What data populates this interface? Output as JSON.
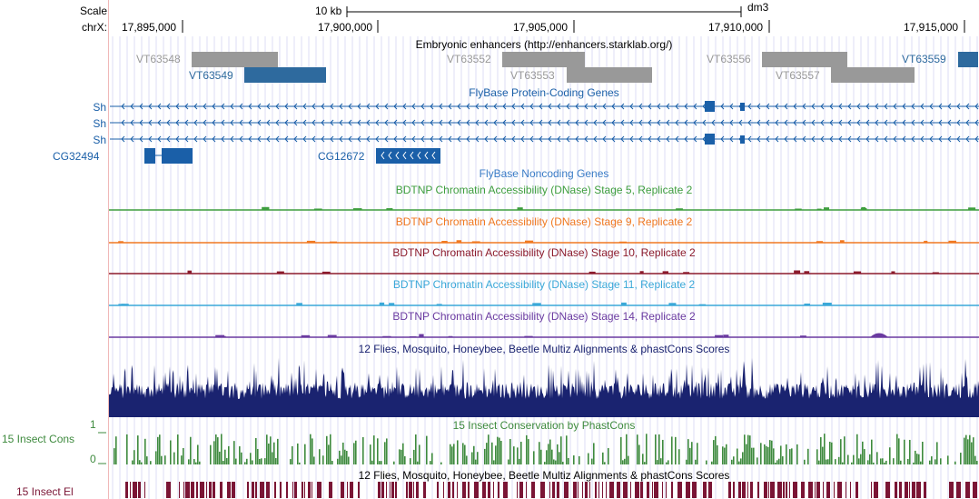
{
  "ruler": {
    "scale_label": "Scale",
    "chrom_label": "chrX:",
    "scale_bar_text": "10 kb",
    "assembly": "dm3",
    "ticks": [
      "17,895,000",
      "17,900,000",
      "17,905,000",
      "17,910,000",
      "17,915,000"
    ]
  },
  "enhancers": {
    "title": "Embryonic enhancers (http://enhancers.starklab.org/)",
    "items": [
      {
        "name": "VT63548",
        "color": "#999999"
      },
      {
        "name": "VT63549",
        "color": "#2e6a9e"
      },
      {
        "name": "VT63552",
        "color": "#999999"
      },
      {
        "name": "VT63553",
        "color": "#999999"
      },
      {
        "name": "VT63556",
        "color": "#999999"
      },
      {
        "name": "VT63557",
        "color": "#999999"
      },
      {
        "name": "VT63559",
        "color": "#2e6a9e"
      }
    ]
  },
  "genes": {
    "title": "FlyBase Protein-Coding Genes",
    "color": "#1a5fa8",
    "transcripts": [
      "Sh",
      "Sh",
      "Sh"
    ],
    "others": [
      "CG32494",
      "CG12672"
    ]
  },
  "noncoding": {
    "title": "FlyBase Noncoding Genes",
    "color": "#3a7cc6"
  },
  "dnase": [
    {
      "title": "BDTNP Chromatin Accessibility (DNase) Stage 5, Replicate 2",
      "color": "#3e9e3e"
    },
    {
      "title": "BDTNP Chromatin Accessibility (DNase) Stage 9, Replicate 2",
      "color": "#f07820"
    },
    {
      "title": "BDTNP Chromatin Accessibility (DNase) Stage 10, Replicate 2",
      "color": "#8b1a2b"
    },
    {
      "title": "BDTNP Chromatin Accessibility (DNase) Stage 11, Replicate 2",
      "color": "#3aa8d8"
    },
    {
      "title": "BDTNP Chromatin Accessibility (DNase) Stage 14, Replicate 2",
      "color": "#6a3aa0"
    }
  ],
  "multiz": {
    "title": "12 Flies, Mosquito, Honeybee, Beetle Multiz Alignments & phastCons Scores",
    "color": "#1a2370"
  },
  "phastcons": {
    "title": "15 Insect Conservation by PhastCons",
    "side_label": "15 Insect Cons",
    "axis_max": "1",
    "axis_min": "0",
    "color": "#3e8a3e"
  },
  "elements": {
    "title": "12 Flies, Mosquito, Honeybee, Beetle Multiz Alignments & phastCons Scores",
    "side_label": "15 Insect El",
    "color": "#7a1535"
  }
}
